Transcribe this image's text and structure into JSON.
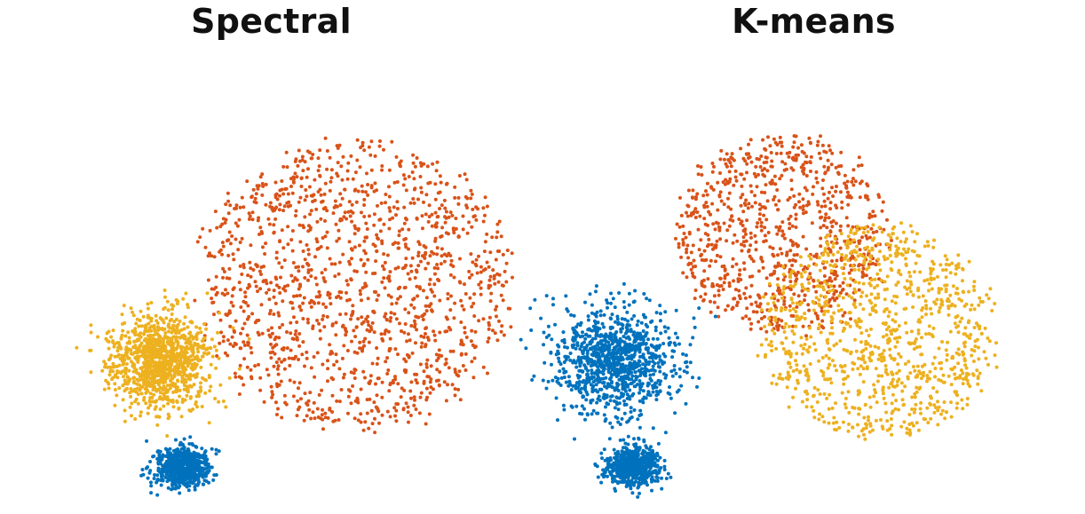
{
  "chart_data": [
    {
      "type": "scatter",
      "title": "Spectral",
      "series": [
        {
          "color": "#D95319",
          "n": 1400,
          "dist": "uniform-disk",
          "center": [
            400,
            320
          ],
          "radius": 190,
          "seed": 11
        },
        {
          "color": "#EDB120",
          "n": 1100,
          "dist": "gauss",
          "center": [
            182,
            408
          ],
          "sigma": [
            26,
            26
          ],
          "seed": 12
        },
        {
          "color": "#0072BD",
          "n": 650,
          "dist": "gauss",
          "center": [
            205,
            526
          ],
          "sigma": [
            15,
            11
          ],
          "seed": 13
        }
      ]
    },
    {
      "type": "scatter",
      "title": "K-means",
      "series": [
        {
          "color": "#D95319",
          "n": 850,
          "dist": "uniform-disk",
          "center": [
            880,
            265
          ],
          "radius": 130,
          "seed": 21
        },
        {
          "color": "#EDB120",
          "n": 1000,
          "dist": "uniform-disk",
          "center": [
            990,
            375
          ],
          "radius": 140,
          "seed": 22
        },
        {
          "color": "#0072BD",
          "n": 1000,
          "dist": "gauss",
          "center": [
            690,
            405
          ],
          "sigma": [
            34,
            30
          ],
          "seed": 23
        },
        {
          "color": "#0072BD",
          "n": 600,
          "dist": "gauss",
          "center": [
            712,
            525
          ],
          "sigma": [
            15,
            11
          ],
          "seed": 24
        }
      ]
    }
  ]
}
